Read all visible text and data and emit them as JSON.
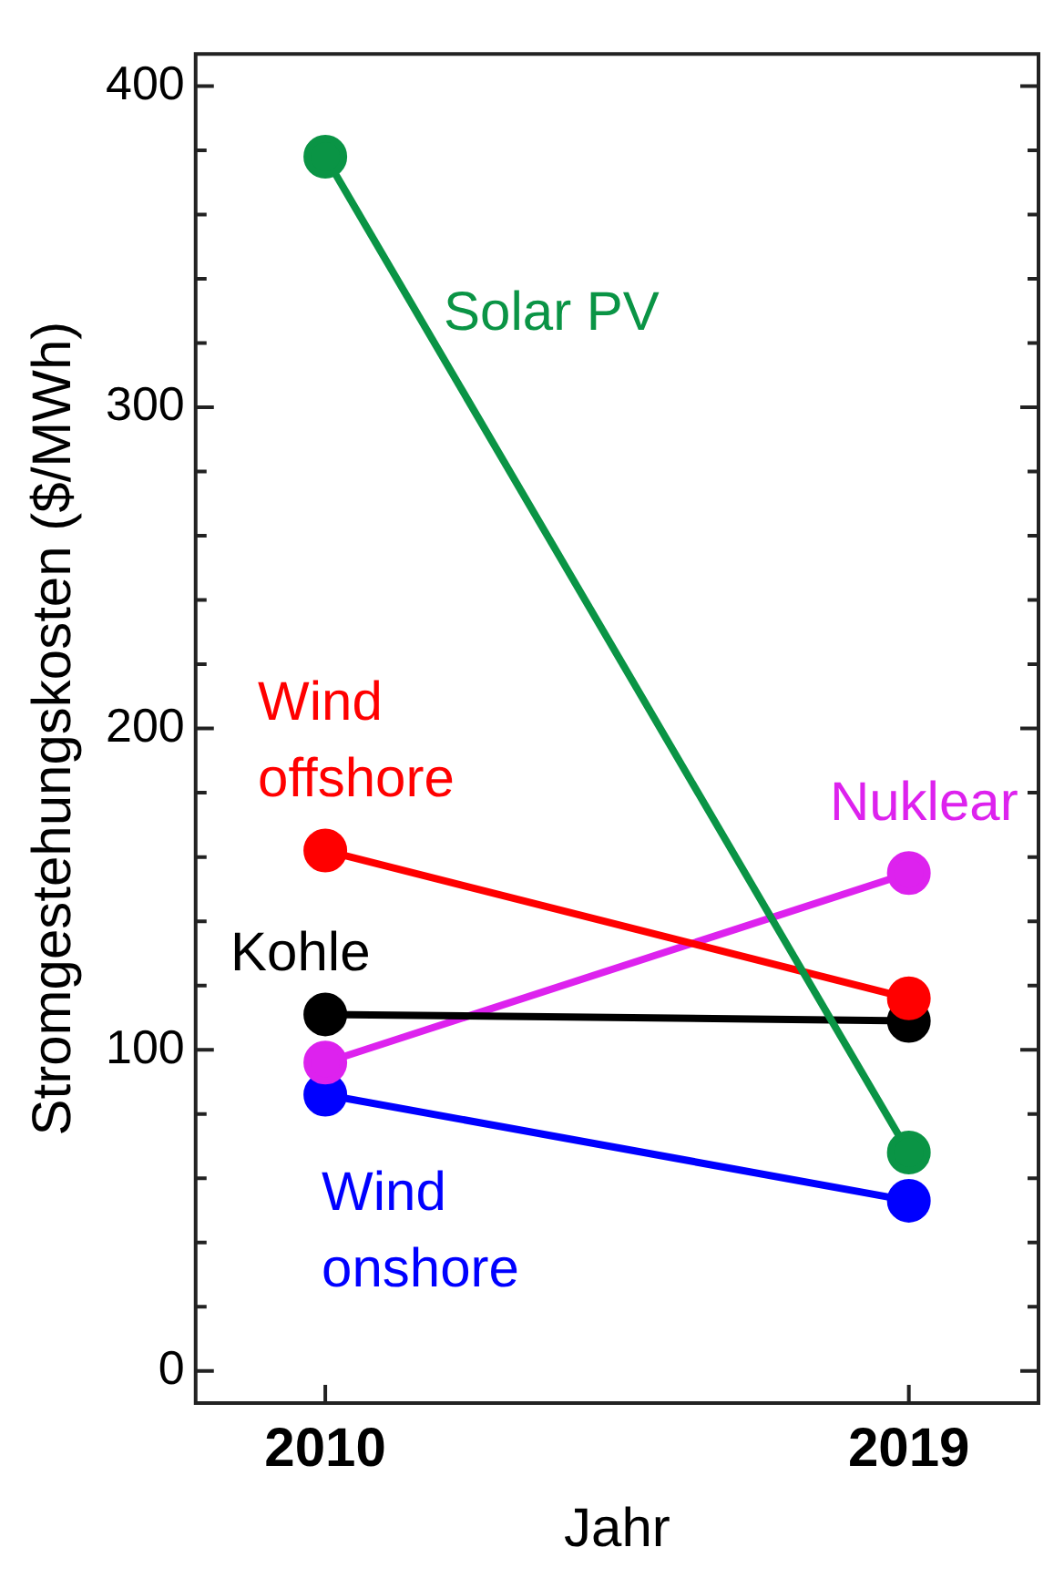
{
  "chart_data": {
    "type": "line",
    "xlabel": "Jahr",
    "ylabel": "Stromgestehungskosten ($/MWh)",
    "x": [
      2010,
      2019
    ],
    "xlim": [
      2008,
      2021
    ],
    "xticks": [
      2010,
      2019
    ],
    "ylim": [
      -10,
      410
    ],
    "yticks": [
      0,
      {
        "value": 20,
        "label": null
      },
      {
        "value": 40,
        "label": null
      },
      {
        "value": 60,
        "label": null
      },
      {
        "value": 80,
        "label": null
      },
      100,
      {
        "value": 120,
        "label": null
      },
      {
        "value": 140,
        "label": null
      },
      {
        "value": 160,
        "label": null
      },
      {
        "value": 180,
        "label": null
      },
      200,
      {
        "value": 220,
        "label": null
      },
      {
        "value": 240,
        "label": null
      },
      {
        "value": 260,
        "label": null
      },
      {
        "value": 280,
        "label": null
      },
      300,
      {
        "value": 320,
        "label": null
      },
      {
        "value": 340,
        "label": null
      },
      {
        "value": 360,
        "label": null
      },
      {
        "value": 380,
        "label": null
      },
      400
    ],
    "marker": "circle",
    "legend": false,
    "grid": false,
    "series": [
      {
        "name": "Solar PV",
        "color": "#0a9445",
        "values": [
          378,
          68
        ]
      },
      {
        "name": "Wind offshore",
        "color": "#ff0000",
        "values": [
          162,
          116
        ]
      },
      {
        "name": "Kohle",
        "color": "#000000",
        "values": [
          111,
          109
        ]
      },
      {
        "name": "Nuklear",
        "color": "#dd22ee",
        "values": [
          96,
          155
        ]
      },
      {
        "name": "Wind onshore",
        "color": "#0000ff",
        "values": [
          86,
          53
        ]
      }
    ]
  }
}
